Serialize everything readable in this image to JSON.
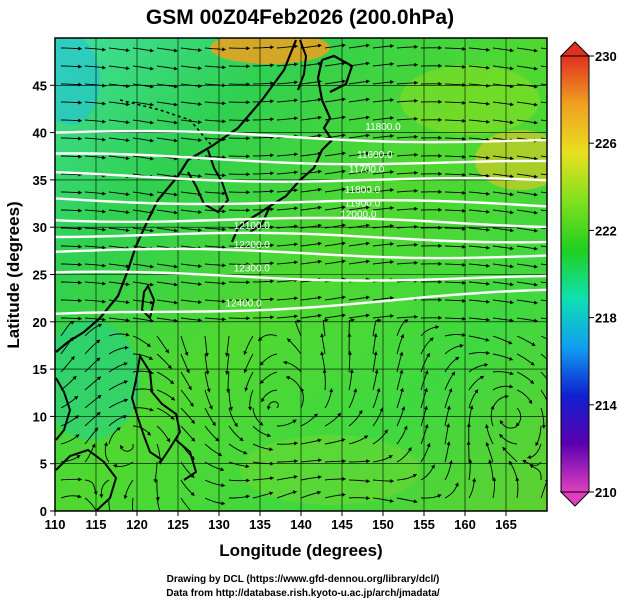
{
  "title": "GSM 00Z04Feb2026 (200.0hPa)",
  "axes": {
    "xlabel": "Longitude (degrees)",
    "ylabel": "Latitude  (degrees)",
    "xlim": [
      110,
      170
    ],
    "ylim": [
      0,
      50
    ],
    "xticks": [
      "110",
      "115",
      "120",
      "125",
      "130",
      "135",
      "140",
      "145",
      "150",
      "155",
      "160",
      "165"
    ],
    "yticks": [
      "0",
      "5",
      "10",
      "15",
      "20",
      "25",
      "30",
      "35",
      "40",
      "45"
    ],
    "grid": true
  },
  "colorbar": {
    "labels": [
      "230",
      "226",
      "222",
      "218",
      "214",
      "210"
    ],
    "range": [
      210,
      230
    ],
    "stops": [
      "#e040c0",
      "#5a00b0",
      "#1020d0",
      "#10a0f0",
      "#10e0b0",
      "#20d020",
      "#80e020",
      "#e8e020",
      "#f0a020",
      "#e03020"
    ]
  },
  "contours": {
    "color": "#ffffff",
    "labels": [
      "11800.0",
      "11600.0",
      "11700.0",
      "11800.0",
      "11900.0",
      "12000.0",
      "12100.0",
      "12200.0",
      "12300.0",
      "12400.0"
    ]
  },
  "credits": {
    "line1": "Drawing by DCL (https://www.gfd-dennou.org/library/dcl/)",
    "line2": "Data from http://database.rish.kyoto-u.ac.jp/arch/jmadata/"
  }
}
